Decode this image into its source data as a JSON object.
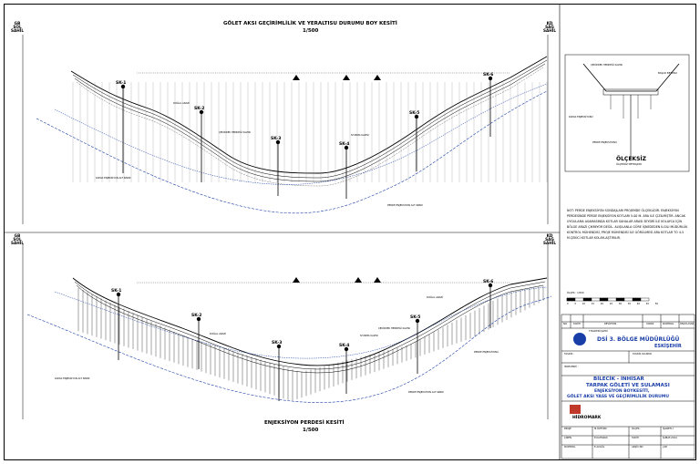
{
  "top_section": {
    "title": "GÖLET AKSI GEÇİRİMLİLİK VE YERALTISU DURUMU BOY KESİTİ",
    "scale": "1/500",
    "left_axis": [
      "GB",
      "SOL",
      "SAHİL"
    ],
    "right_axis": [
      "KD",
      "SAĞ",
      "SAHİL"
    ],
    "boreholes": [
      "SK-1",
      "SK-2",
      "SK-3",
      "SK-4",
      "SK-5",
      "SK-6"
    ],
    "labels": {
      "dogal_arazi": "DOĞAL ARAZİ",
      "cekirdek_hendek": "ÇEKİRDEK HENDEĞİ KAZISI",
      "siyirma": "SIYIRMA KAZISI",
      "kapak_alt": "KAPAK ENJEKSİYON ALT SINIRI",
      "perde_alt": "PERDE ENJEKSİYON ALT SINIRI"
    }
  },
  "bottom_section": {
    "title": "ENJEKSİYON PERDESİ KESİTİ",
    "scale": "1/500",
    "left_axis": [
      "GB",
      "SOL",
      "SAHİL"
    ],
    "right_axis": [
      "KD",
      "SAĞ",
      "SAHİL"
    ],
    "boreholes": [
      "SK-1",
      "SK-2",
      "SK-3",
      "SK-4",
      "SK-5",
      "SK-6"
    ],
    "labels": {
      "dogal_arazi": "DOĞAL ARAZİ",
      "cekirdek_hendek": "ÇEKİRDEK HENDEĞİ KAZISI",
      "siyirma": "SIYIRMA KAZISI",
      "kapak_alt": "KAPAK ENJEKSİYON ALT SINIRI",
      "perde_alt": "PERDE ENJEKSİYON ALT SINIRI",
      "perde_enj": "PERDE ENJEKSİYONU"
    }
  },
  "detail": {
    "title": "ÖLÇEKSİZ",
    "subtitle": "ÖLÇEKSİZ METRAJDIR",
    "labels": [
      "ÇEKİRDEK HENDEĞİ KAZISI",
      "BAŞLIK BETONU",
      "KAPAK ENJEKSİYONU",
      "PERDE ENJEKSİYONU"
    ]
  },
  "notes": "NOT: PERDE ENJEKSİYON SONDAJLARI PROJEMDE ÖLÇEKLİDİR. ENJEKSİYON PERDESİNDE PERDE ENJEKSİYON KOTLARI 5.00 M. ARA İLE ÇİZİLMİŞTİR. ANCAK UYGULAMA ASAMASINDA KOTLAR SAHALAR ARASI SEYDRİ İLE KOLAYCA İÇİN BÖLGE ARAZİ ÇIKMIYOR DEĞİL. ALIŞILANLA GÖRE İŞNEDEDEN İLGİLİ MÜDÜRLÜK KONTROL MÜHENDİSİ, PROJE MÜHENDİSİ İLE GÖRÜLMESİ ARA KOTLAR TO 4-5 M.ÇEKİCİ KOTLAR KOLAYLAŞTIRILIR.",
  "scale_bar": {
    "label": "ÖLÇEK : 1/500",
    "ticks": [
      "0",
      "5",
      "10",
      "15",
      "20",
      "25",
      "30",
      "35",
      "40",
      "45",
      "50"
    ]
  },
  "revision_table": {
    "headers": [
      "NO",
      "TARİH",
      "REVİZYON",
      "YAPAN",
      "KONTROL",
      "ONAYLAYAN"
    ]
  },
  "title_block": {
    "owner_label": "T.MADEN İŞLERİ",
    "org": "DSİ 3. BÖLGE MÜDÜRLÜĞÜ",
    "city": "ESKİŞEHİR",
    "tasdik": "TASDİK :",
    "tasdik_olunur": "TASDİK OLUNUR",
    "incelendi": "İNCELENDİ :",
    "project_line1": "BİLECİK - İNHİSAR",
    "project_line2": "TARPAK GÖLETİ VE SULAMASI",
    "project_line3": "ENJEKSİYON BOYKESİTİ,",
    "project_line4": "GÖLET AKSI YASS VE GEÇİRİMLİLİK DURUMU",
    "company": "HİDROMARK",
    "rows": [
      {
        "k": "PROJE",
        "v": "M.ÖZTÜRK",
        "k2": "ÖLÇEK",
        "v2": "İŞARETLİ"
      },
      {
        "k": "ÇİZEN",
        "v": "E.KAYMAKK",
        "k2": "TARİH",
        "v2": "ŞUBAT-2014"
      },
      {
        "k": "KONTROL",
        "v": "E.AVGÜL",
        "k2": "ARŞİV NO",
        "v2": "J-08"
      }
    ]
  }
}
